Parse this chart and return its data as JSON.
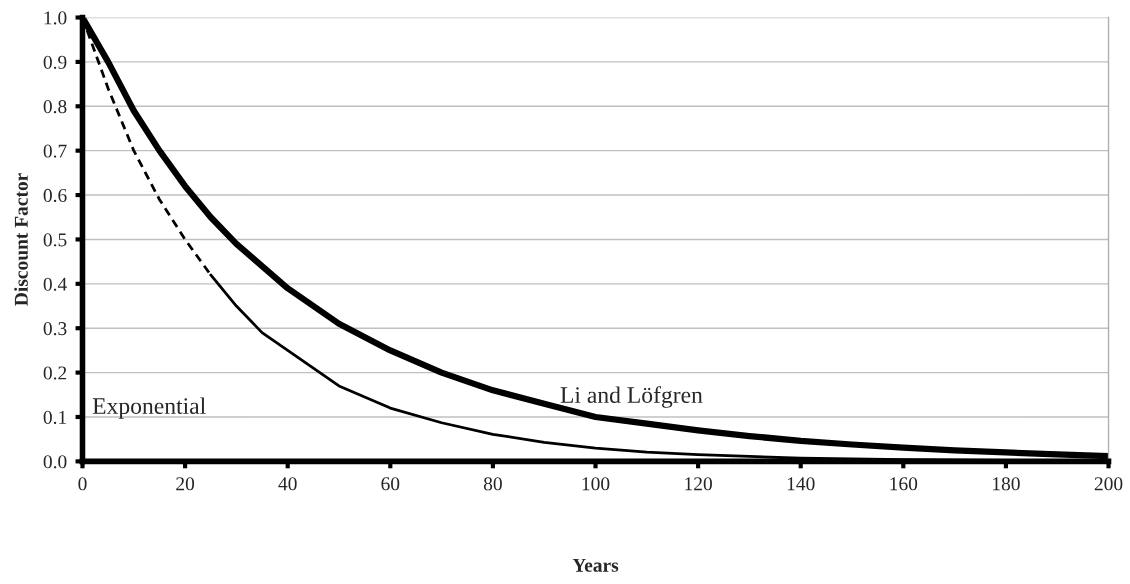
{
  "chart_data": {
    "type": "line",
    "xlabel": "Years",
    "ylabel": "Discount Factor",
    "xlim": [
      0,
      200
    ],
    "xticks": [
      0,
      20,
      40,
      60,
      80,
      100,
      120,
      140,
      160,
      180,
      200
    ],
    "ylim": [
      0,
      1
    ],
    "yticks": [
      {
        "value": 0,
        "label": "0.0"
      },
      0.1,
      0.2,
      0.3,
      0.4,
      0.5,
      0.6,
      0.7,
      0.8,
      0.9,
      {
        "value": 1,
        "label": "1.0"
      }
    ],
    "grid": "y",
    "legend": false,
    "marker": "none",
    "series": [
      {
        "color": "#000000",
        "line_style": "solid",
        "x": [
          0,
          5,
          10,
          15,
          20,
          25,
          30,
          40,
          50,
          60,
          70,
          80,
          90,
          100,
          110,
          120,
          130,
          140,
          150,
          160,
          170,
          180,
          190,
          200
        ],
        "values": [
          1,
          0.9,
          0.79,
          0.7,
          0.62,
          0.55,
          0.49,
          0.39,
          0.31,
          0.25,
          0.2,
          0.16,
          0.13,
          0.1,
          0.085,
          0.07,
          0.057,
          0.046,
          0.038,
          0.031,
          0.025,
          0.02,
          0.016,
          0.012
        ]
      },
      {
        "color": "#000000",
        "line_style": "dashed",
        "x": [
          0,
          5,
          10,
          15,
          20,
          25
        ],
        "values": [
          1,
          0.84,
          0.7,
          0.59,
          0.5,
          0.42
        ]
      },
      {
        "color": "#000000",
        "line_style": "solid",
        "x": [
          25,
          30,
          35,
          40,
          50,
          60,
          70,
          80,
          90,
          100,
          110,
          120,
          130,
          140,
          160,
          180,
          200
        ],
        "values": [
          0.42,
          0.35,
          0.29,
          0.25,
          0.17,
          0.12,
          0.087,
          0.061,
          0.043,
          0.03,
          0.021,
          0.015,
          0.011,
          0.007,
          0.004,
          0.002,
          0.001
        ]
      }
    ],
    "annotations": [
      "Exponential",
      "Li and Löfgren"
    ]
  }
}
